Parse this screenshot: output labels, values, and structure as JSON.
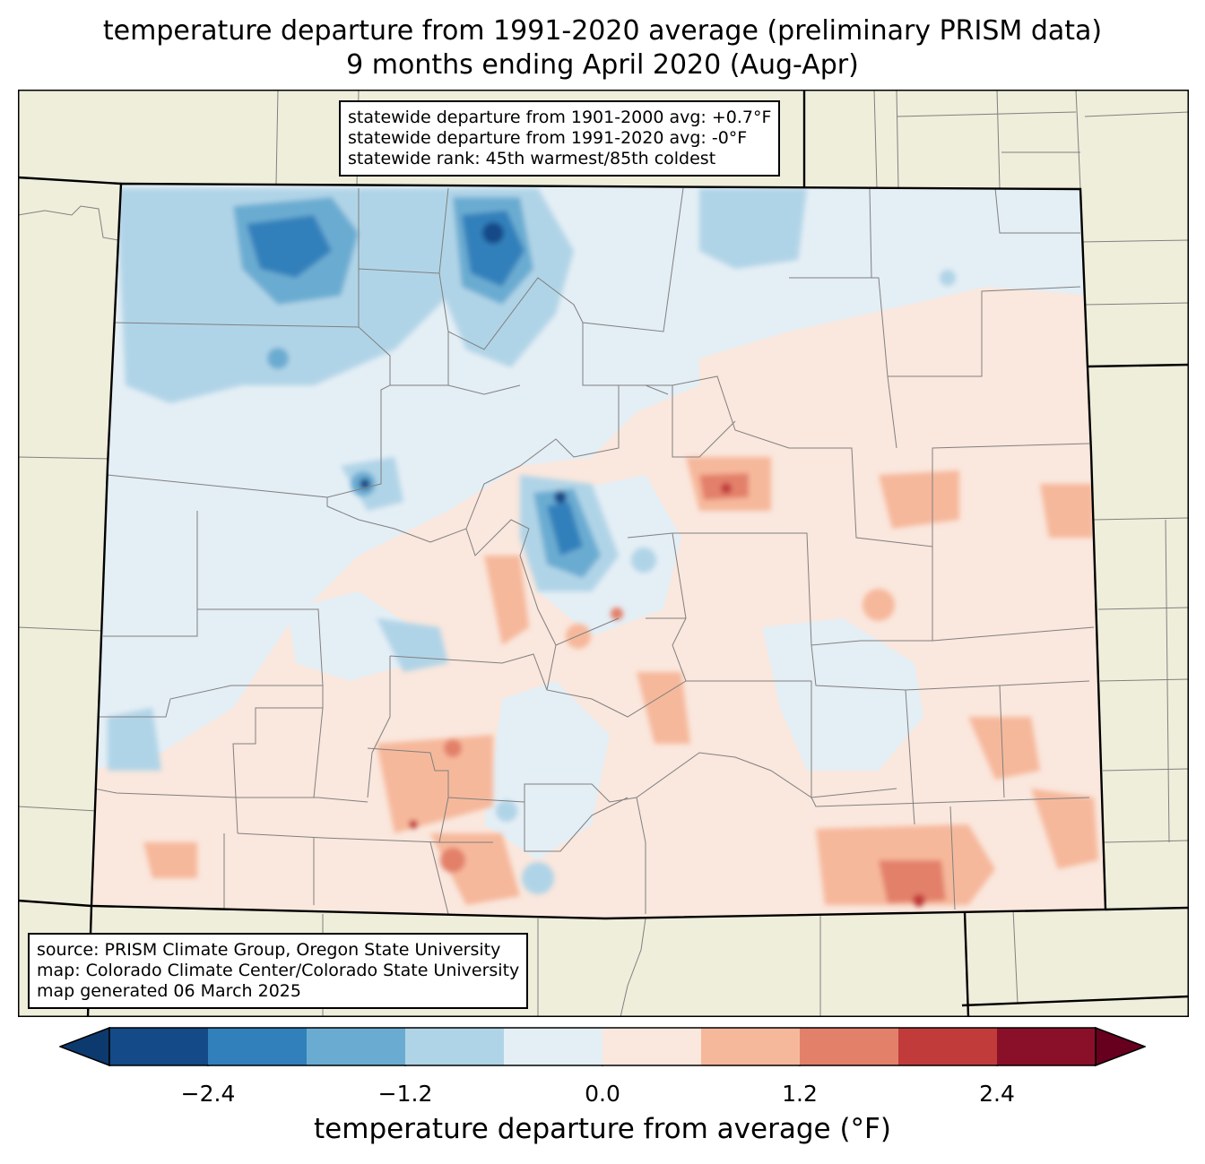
{
  "title_line1": "temperature departure from 1991-2020 average (preliminary PRISM data)",
  "title_line2": "9 months ending April 2020 (Aug-Apr)",
  "stats": [
    "statewide departure from 1901-2000 avg: +0.7°F",
    "statewide departure from 1991-2020 avg: -0°F",
    "statewide rank: 45th warmest/85th coldest"
  ],
  "credits": [
    "source: PRISM Climate Group, Oregon State University",
    "map: Colorado Climate Center/Colorado State University",
    "map generated 06 March 2025"
  ],
  "colorbar": {
    "label": "temperature departure from average (°F)",
    "bin_edges": [
      -3.0,
      -2.4,
      -1.8,
      -1.2,
      -0.6,
      0.0,
      0.6,
      1.2,
      1.8,
      2.4,
      3.0
    ],
    "ticks": [
      "−2.4",
      "−1.2",
      "0.0",
      "1.2",
      "2.4"
    ],
    "tick_values": [
      -2.4,
      -1.2,
      0.0,
      1.2,
      2.4
    ],
    "under_color": "#0d3a6e",
    "over_color": "#67001f",
    "colors": [
      "#144a87",
      "#3180bb",
      "#6aacd1",
      "#b0d4e7",
      "#e4eef5",
      "#fae7dd",
      "#f6b89b",
      "#e3806a",
      "#c13b3b",
      "#8a0f28"
    ]
  },
  "map_colors": {
    "land": "#efeedb",
    "state_border": "#000000",
    "county_border": "#808080"
  }
}
